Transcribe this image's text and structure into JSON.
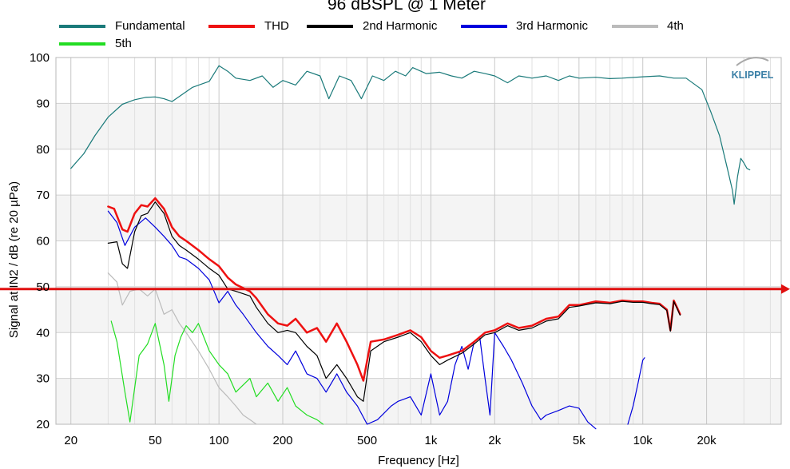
{
  "chart_data": {
    "type": "line",
    "title": "96 dBSPL @ 1 Meter",
    "xlabel": "Frequency [Hz]",
    "ylabel": "Signal at IN2 / dB (re 20 µPa)",
    "x_scale": "log",
    "xlim": [
      17,
      45000
    ],
    "ylim": [
      20,
      100
    ],
    "x_ticks": [
      20,
      50,
      100,
      200,
      500,
      1000,
      2000,
      5000,
      10000,
      20000
    ],
    "x_tick_labels": [
      "20",
      "50",
      "100",
      "200",
      "500",
      "1k",
      "2k",
      "5k",
      "10k",
      "20k"
    ],
    "y_ticks": [
      20,
      30,
      40,
      50,
      60,
      70,
      80,
      90,
      100
    ],
    "y_tick_labels": [
      "20",
      "30",
      "40",
      "50",
      "60",
      "70",
      "80",
      "90",
      "100"
    ],
    "reference_line": {
      "y": 49.5,
      "color": "#e01010"
    },
    "logo": "KLIPPEL",
    "legend_position": "top",
    "series": [
      {
        "name": "Fundamental",
        "color": "#1a7a7a",
        "width": 1.2,
        "points": [
          [
            20,
            75.8
          ],
          [
            23,
            79
          ],
          [
            26,
            83
          ],
          [
            30,
            87
          ],
          [
            35,
            89.8
          ],
          [
            40,
            90.8
          ],
          [
            45,
            91.3
          ],
          [
            50,
            91.4
          ],
          [
            55,
            91
          ],
          [
            60,
            90.4
          ],
          [
            65,
            91.5
          ],
          [
            75,
            93.5
          ],
          [
            90,
            94.8
          ],
          [
            100,
            98.2
          ],
          [
            110,
            97
          ],
          [
            120,
            95.5
          ],
          [
            140,
            95
          ],
          [
            160,
            96
          ],
          [
            180,
            93.5
          ],
          [
            200,
            95
          ],
          [
            230,
            94
          ],
          [
            260,
            97
          ],
          [
            300,
            96
          ],
          [
            330,
            91
          ],
          [
            370,
            96
          ],
          [
            420,
            95
          ],
          [
            470,
            91
          ],
          [
            530,
            96
          ],
          [
            600,
            95
          ],
          [
            680,
            97
          ],
          [
            760,
            96
          ],
          [
            820,
            97.8
          ],
          [
            950,
            96.5
          ],
          [
            1100,
            96.8
          ],
          [
            1250,
            96
          ],
          [
            1400,
            95.5
          ],
          [
            1600,
            97
          ],
          [
            1800,
            96.5
          ],
          [
            2000,
            96
          ],
          [
            2300,
            94.5
          ],
          [
            2600,
            96
          ],
          [
            3000,
            95.5
          ],
          [
            3500,
            96
          ],
          [
            4000,
            95
          ],
          [
            4500,
            96
          ],
          [
            5000,
            95.5
          ],
          [
            6000,
            95.7
          ],
          [
            7000,
            95.4
          ],
          [
            8000,
            95.5
          ],
          [
            10000,
            95.8
          ],
          [
            12000,
            96
          ],
          [
            14000,
            95.5
          ],
          [
            16000,
            95.5
          ],
          [
            19000,
            93
          ],
          [
            21000,
            88
          ],
          [
            23000,
            83
          ],
          [
            25000,
            76
          ],
          [
            26500,
            71
          ],
          [
            27000,
            68
          ],
          [
            28000,
            74
          ],
          [
            29000,
            78
          ],
          [
            30000,
            77
          ],
          [
            31000,
            75.8
          ],
          [
            32000,
            75.5
          ]
        ]
      },
      {
        "name": "THD",
        "color": "#ee1111",
        "width": 2.5,
        "points": [
          [
            30,
            67.5
          ],
          [
            32,
            67
          ],
          [
            35,
            62.5
          ],
          [
            37,
            62
          ],
          [
            40,
            66
          ],
          [
            43,
            67.8
          ],
          [
            46,
            67.5
          ],
          [
            50,
            69.3
          ],
          [
            55,
            67
          ],
          [
            60,
            63
          ],
          [
            65,
            61
          ],
          [
            70,
            60
          ],
          [
            80,
            58
          ],
          [
            90,
            56
          ],
          [
            100,
            54.5
          ],
          [
            110,
            52
          ],
          [
            120,
            50.5
          ],
          [
            140,
            49
          ],
          [
            150,
            47.5
          ],
          [
            170,
            44
          ],
          [
            190,
            42
          ],
          [
            210,
            41.5
          ],
          [
            230,
            43
          ],
          [
            260,
            40
          ],
          [
            290,
            41
          ],
          [
            320,
            38
          ],
          [
            360,
            42
          ],
          [
            400,
            38
          ],
          [
            450,
            33
          ],
          [
            480,
            29.5
          ],
          [
            520,
            38
          ],
          [
            600,
            38.5
          ],
          [
            700,
            39.5
          ],
          [
            800,
            40.5
          ],
          [
            900,
            39
          ],
          [
            1000,
            36
          ],
          [
            1100,
            34.5
          ],
          [
            1200,
            35
          ],
          [
            1400,
            36
          ],
          [
            1600,
            38
          ],
          [
            1800,
            40
          ],
          [
            2000,
            40.5
          ],
          [
            2300,
            42
          ],
          [
            2600,
            41
          ],
          [
            3000,
            41.5
          ],
          [
            3500,
            43
          ],
          [
            4000,
            43.5
          ],
          [
            4500,
            46
          ],
          [
            5000,
            46
          ],
          [
            6000,
            46.8
          ],
          [
            7000,
            46.5
          ],
          [
            8000,
            47
          ],
          [
            9000,
            46.8
          ],
          [
            10000,
            46.8
          ],
          [
            11000,
            46.5
          ],
          [
            12000,
            46.3
          ],
          [
            13000,
            45
          ],
          [
            13500,
            40.5
          ],
          [
            14000,
            47
          ],
          [
            14500,
            45.5
          ],
          [
            15000,
            44
          ]
        ]
      },
      {
        "name": "2nd Harmonic",
        "color": "#000000",
        "width": 1.2,
        "points": [
          [
            30,
            59.5
          ],
          [
            33,
            59.8
          ],
          [
            35,
            55
          ],
          [
            37,
            54
          ],
          [
            40,
            62
          ],
          [
            43,
            65.5
          ],
          [
            46,
            66
          ],
          [
            50,
            68.5
          ],
          [
            55,
            66
          ],
          [
            60,
            61
          ],
          [
            65,
            59
          ],
          [
            70,
            58
          ],
          [
            80,
            56
          ],
          [
            90,
            54
          ],
          [
            100,
            52.5
          ],
          [
            110,
            49.5
          ],
          [
            120,
            49
          ],
          [
            140,
            48
          ],
          [
            150,
            45.5
          ],
          [
            170,
            42
          ],
          [
            190,
            40
          ],
          [
            210,
            40.5
          ],
          [
            230,
            40
          ],
          [
            260,
            37
          ],
          [
            290,
            35
          ],
          [
            320,
            30
          ],
          [
            360,
            33
          ],
          [
            400,
            30
          ],
          [
            450,
            26
          ],
          [
            480,
            25
          ],
          [
            520,
            36
          ],
          [
            600,
            38
          ],
          [
            700,
            39
          ],
          [
            800,
            40
          ],
          [
            900,
            38
          ],
          [
            1000,
            35
          ],
          [
            1100,
            33
          ],
          [
            1200,
            34
          ],
          [
            1400,
            35.5
          ],
          [
            1600,
            37.5
          ],
          [
            1800,
            39.5
          ],
          [
            2000,
            40
          ],
          [
            2300,
            41.5
          ],
          [
            2600,
            40.5
          ],
          [
            3000,
            41
          ],
          [
            3500,
            42.5
          ],
          [
            4000,
            43
          ],
          [
            4500,
            45.5
          ],
          [
            5000,
            45.8
          ],
          [
            6000,
            46.5
          ],
          [
            7000,
            46.3
          ],
          [
            8000,
            46.8
          ],
          [
            9000,
            46.6
          ],
          [
            10000,
            46.6
          ],
          [
            11000,
            46.3
          ],
          [
            12000,
            46.1
          ],
          [
            13000,
            44.8
          ],
          [
            13500,
            40.3
          ],
          [
            14000,
            46.8
          ],
          [
            14500,
            45.3
          ],
          [
            15000,
            43.8
          ]
        ]
      },
      {
        "name": "3rd Harmonic",
        "color": "#0000dd",
        "width": 1.2,
        "points": [
          [
            30,
            66.5
          ],
          [
            33,
            64
          ],
          [
            36,
            59
          ],
          [
            40,
            63
          ],
          [
            45,
            65
          ],
          [
            50,
            63
          ],
          [
            55,
            61
          ],
          [
            60,
            59
          ],
          [
            65,
            56.5
          ],
          [
            70,
            56
          ],
          [
            80,
            54
          ],
          [
            90,
            51.5
          ],
          [
            100,
            46.5
          ],
          [
            110,
            49
          ],
          [
            120,
            46
          ],
          [
            130,
            44
          ],
          [
            150,
            40
          ],
          [
            170,
            37
          ],
          [
            190,
            35
          ],
          [
            210,
            33
          ],
          [
            230,
            36
          ],
          [
            260,
            31
          ],
          [
            290,
            30
          ],
          [
            320,
            27
          ],
          [
            360,
            31
          ],
          [
            400,
            27
          ],
          [
            450,
            24
          ],
          [
            500,
            20
          ],
          [
            560,
            21
          ],
          [
            650,
            24
          ],
          [
            700,
            25
          ],
          [
            800,
            26
          ],
          [
            900,
            22
          ],
          [
            1000,
            31
          ],
          [
            1100,
            22
          ],
          [
            1200,
            25
          ],
          [
            1300,
            33
          ],
          [
            1400,
            37
          ],
          [
            1500,
            32
          ],
          [
            1600,
            38
          ],
          [
            1700,
            39
          ],
          [
            1800,
            30
          ],
          [
            1900,
            22
          ],
          [
            2000,
            40
          ],
          [
            2200,
            37
          ],
          [
            2400,
            34
          ],
          [
            2700,
            29
          ],
          [
            3000,
            24
          ],
          [
            3300,
            21
          ],
          [
            3500,
            22
          ],
          [
            4000,
            23
          ],
          [
            4500,
            24
          ],
          [
            5000,
            23.5
          ],
          [
            5500,
            20.5
          ],
          [
            6000,
            19
          ]
        ]
      },
      {
        "name": "4th",
        "color": "#bbbbbb",
        "width": 1.2,
        "points": [
          [
            30,
            53
          ],
          [
            33,
            51
          ],
          [
            35,
            46
          ],
          [
            38,
            49
          ],
          [
            42,
            49.5
          ],
          [
            46,
            48
          ],
          [
            50,
            49.5
          ],
          [
            55,
            44
          ],
          [
            60,
            45
          ],
          [
            65,
            42
          ],
          [
            70,
            40
          ],
          [
            80,
            36
          ],
          [
            90,
            32
          ],
          [
            100,
            28
          ],
          [
            110,
            26
          ],
          [
            120,
            24
          ],
          [
            130,
            22
          ],
          [
            140,
            21
          ],
          [
            150,
            20
          ]
        ]
      },
      {
        "name": "5th",
        "color": "#22dd22",
        "width": 1.2,
        "points": [
          [
            31,
            42.5
          ],
          [
            33,
            38
          ],
          [
            36,
            27
          ],
          [
            38,
            20.5
          ],
          [
            42,
            35
          ],
          [
            46,
            37.5
          ],
          [
            50,
            42
          ],
          [
            55,
            33
          ],
          [
            58,
            25
          ],
          [
            62,
            35
          ],
          [
            66,
            39
          ],
          [
            70,
            41.5
          ],
          [
            75,
            40
          ],
          [
            80,
            42
          ],
          [
            90,
            36
          ],
          [
            100,
            33
          ],
          [
            110,
            31
          ],
          [
            120,
            27
          ],
          [
            140,
            30
          ],
          [
            150,
            26
          ],
          [
            170,
            29
          ],
          [
            190,
            25
          ],
          [
            210,
            28
          ],
          [
            230,
            24
          ],
          [
            260,
            22
          ],
          [
            290,
            21
          ],
          [
            310,
            20
          ]
        ]
      },
      {
        "name": "",
        "color": "#0000dd",
        "width": 1.2,
        "points": [
          [
            8500,
            20
          ],
          [
            9000,
            24
          ],
          [
            9500,
            29
          ],
          [
            10000,
            34
          ],
          [
            10200,
            34.5
          ]
        ]
      }
    ]
  },
  "legend": {
    "items": [
      "Fundamental",
      "THD",
      "2nd Harmonic",
      "3rd Harmonic",
      "4th",
      "5th"
    ]
  }
}
